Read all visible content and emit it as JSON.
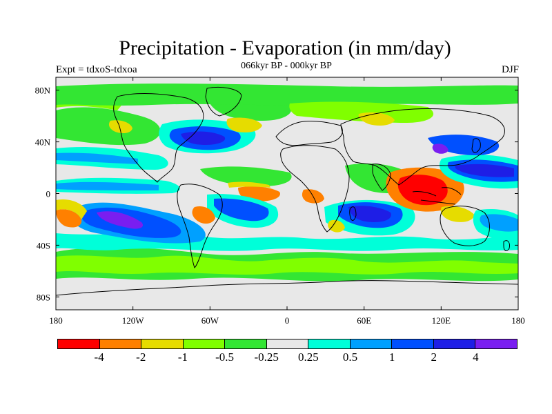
{
  "header": {
    "title": "Precipitation - Evaporation (in mm/day)",
    "subtitle": "066kyr BP - 000kyr BP",
    "expt": "Expt = tdxoS-tdxoa",
    "season": "DJF"
  },
  "map": {
    "projection": "cylindrical-equidistant",
    "lon_range": [
      -180,
      180
    ],
    "lat_range": [
      -90,
      90
    ],
    "land_color": "#e8e8e8",
    "ocean_background": "#e8e8e8"
  },
  "axes": {
    "x_ticks": [
      {
        "value": -180,
        "label": "180"
      },
      {
        "value": -120,
        "label": "120W"
      },
      {
        "value": -60,
        "label": "60W"
      },
      {
        "value": 0,
        "label": "0"
      },
      {
        "value": 60,
        "label": "60E"
      },
      {
        "value": 120,
        "label": "120E"
      },
      {
        "value": 180,
        "label": "180"
      }
    ],
    "y_ticks": [
      {
        "value": 80,
        "label": "80N"
      },
      {
        "value": 40,
        "label": "40N"
      },
      {
        "value": 0,
        "label": "0"
      },
      {
        "value": -40,
        "label": "40S"
      },
      {
        "value": -80,
        "label": "80S"
      }
    ]
  },
  "colorbar": {
    "colors": [
      "#ff0000",
      "#ff8000",
      "#e6dc00",
      "#80ff00",
      "#33e633",
      "#e8e8e8",
      "#00ffd9",
      "#00a0ff",
      "#0050ff",
      "#1e1ee6",
      "#7a1ef0"
    ],
    "labels": [
      "-4",
      "-2",
      "-1",
      "-0.5",
      "-0.25",
      "0.25",
      "0.5",
      "1",
      "2",
      "4"
    ]
  },
  "chart_data": {
    "type": "heatmap",
    "title": "Precipitation - Evaporation (in mm/day)",
    "subtitle": "066kyr BP - 000kyr BP",
    "levels": [
      -4,
      -2,
      -1,
      -0.5,
      -0.25,
      0.25,
      0.5,
      1,
      2,
      4
    ],
    "xlim": [
      -180,
      180
    ],
    "ylim": [
      -90,
      90
    ],
    "regions": [
      {
        "name": "Southern Ocean band",
        "lon": [
          -180,
          180
        ],
        "lat": [
          -60,
          -45
        ],
        "value": -0.4
      },
      {
        "name": "Southern Ocean cyan band",
        "lon": [
          -180,
          180
        ],
        "lat": [
          -45,
          -35
        ],
        "value": 0.7
      },
      {
        "name": "South Pacific blue",
        "lon": [
          -170,
          -110
        ],
        "lat": [
          -30,
          -10
        ],
        "value": 1.5
      },
      {
        "name": "South Pacific purple core",
        "lon": [
          -160,
          -125
        ],
        "lat": [
          -25,
          -15
        ],
        "value": 3
      },
      {
        "name": "Southeast Pacific orange",
        "lon": [
          -180,
          -160
        ],
        "lat": [
          -25,
          -10
        ],
        "value": -1.5
      },
      {
        "name": "South Atlantic blue",
        "lon": [
          -40,
          -10
        ],
        "lat": [
          -25,
          -5
        ],
        "value": 1.5
      },
      {
        "name": "Southern Indian Ocean blue",
        "lon": [
          50,
          95
        ],
        "lat": [
          -30,
          -5
        ],
        "value": 2
      },
      {
        "name": "Maritime Continent red",
        "lon": [
          90,
          130
        ],
        "lat": [
          -10,
          10
        ],
        "value": -3
      },
      {
        "name": "West Pacific blue",
        "lon": [
          135,
          180
        ],
        "lat": [
          0,
          15
        ],
        "value": 2
      },
      {
        "name": "North Pacific blue",
        "lon": [
          140,
          180
        ],
        "lat": [
          20,
          40
        ],
        "value": 1.5
      },
      {
        "name": "North Atlantic blue",
        "lon": [
          -80,
          -40
        ],
        "lat": [
          25,
          45
        ],
        "value": 2
      },
      {
        "name": "Equatorial East Pacific blue",
        "lon": [
          -180,
          -80
        ],
        "lat": [
          0,
          10
        ],
        "value": 1
      },
      {
        "name": "Equatorial Atlantic orange",
        "lon": [
          -30,
          10
        ],
        "lat": [
          -5,
          5
        ],
        "value": -1.2
      },
      {
        "name": "North Pacific green",
        "lon": [
          -180,
          -130
        ],
        "lat": [
          30,
          55
        ],
        "value": -0.4
      },
      {
        "name": "Arctic green",
        "lon": [
          -180,
          180
        ],
        "lat": [
          65,
          80
        ],
        "value": -0.4
      }
    ]
  }
}
